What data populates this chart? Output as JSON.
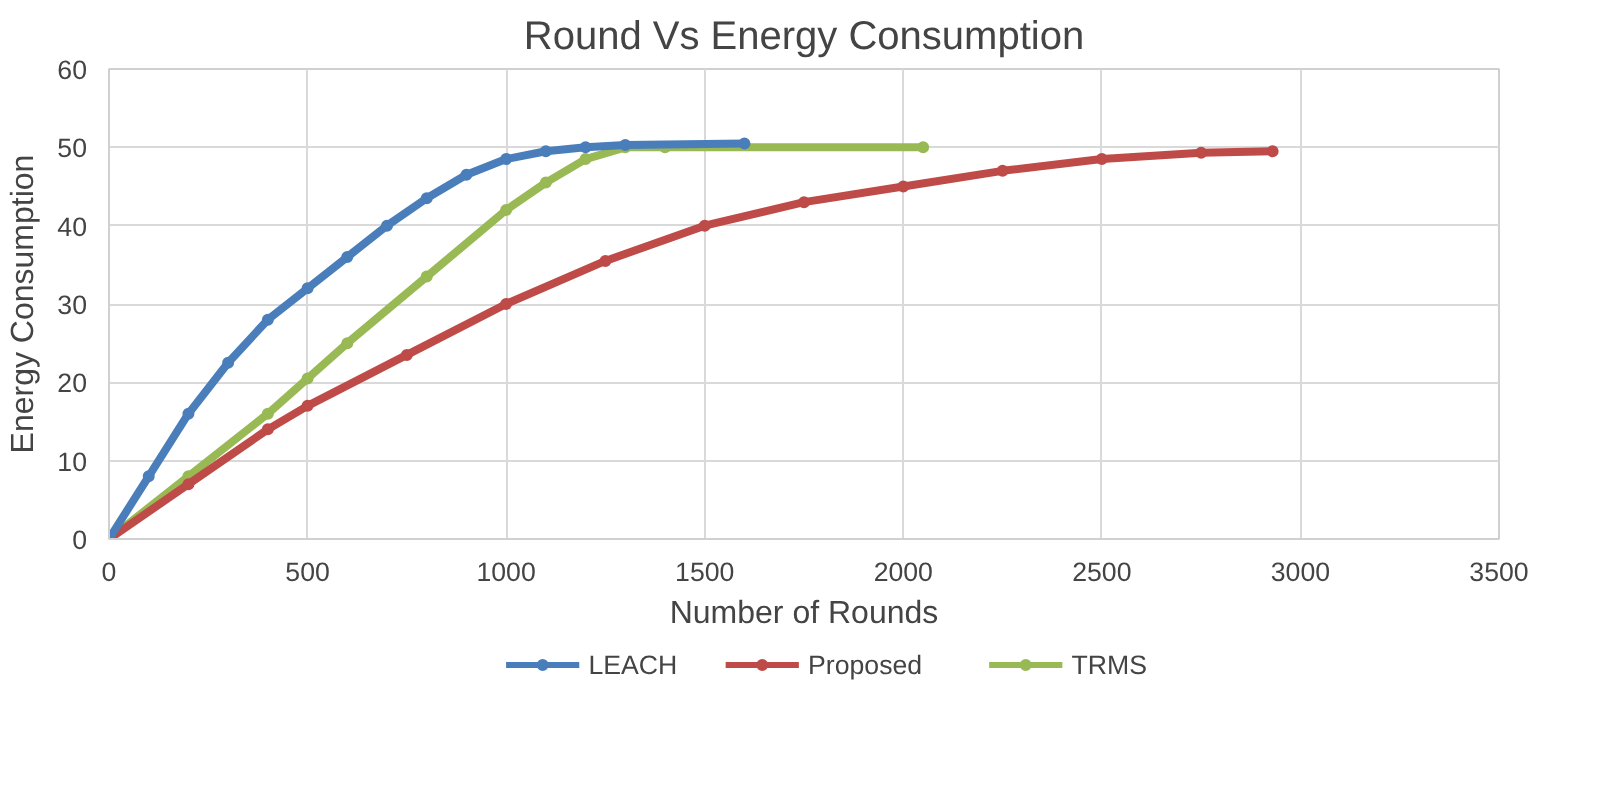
{
  "chart_data": {
    "type": "line",
    "title": "Round Vs Energy Consumption",
    "xlabel": "Number of Rounds",
    "ylabel": "Energy Consumption",
    "xlim": [
      0,
      3500
    ],
    "xticks": [
      0,
      500,
      1000,
      1500,
      2000,
      2500,
      3000,
      3500
    ],
    "ylim": [
      0,
      60
    ],
    "yticks": [
      0,
      10,
      20,
      30,
      40,
      50,
      60
    ],
    "grid": true,
    "legend": "bottom",
    "marker": "circle",
    "line_style": "solid",
    "series": [
      {
        "name": "LEACH",
        "color": "#4a7ebb",
        "x": [
          0,
          100,
          200,
          300,
          400,
          500,
          600,
          700,
          800,
          900,
          1000,
          1100,
          1200,
          1300,
          1600
        ],
        "values": [
          0,
          8,
          16,
          22.5,
          28,
          32,
          36,
          40,
          43.5,
          46.5,
          48.5,
          49.5,
          50,
          50.3,
          50.5
        ]
      },
      {
        "name": "Proposed",
        "color": "#be4b48",
        "x": [
          0,
          200,
          400,
          500,
          750,
          1000,
          1250,
          1500,
          1750,
          2000,
          2250,
          2500,
          2750,
          2930
        ],
        "values": [
          0,
          7,
          14,
          17,
          23.5,
          30,
          35.5,
          40,
          43,
          45,
          47,
          48.5,
          49.3,
          49.5
        ]
      },
      {
        "name": "TRMS",
        "color": "#98b954",
        "x": [
          0,
          200,
          400,
          500,
          600,
          800,
          1000,
          1100,
          1200,
          1300,
          1400,
          2050
        ],
        "values": [
          0,
          8,
          16,
          20.5,
          25,
          33.5,
          42,
          45.5,
          48.5,
          50,
          50,
          50
        ]
      }
    ]
  }
}
